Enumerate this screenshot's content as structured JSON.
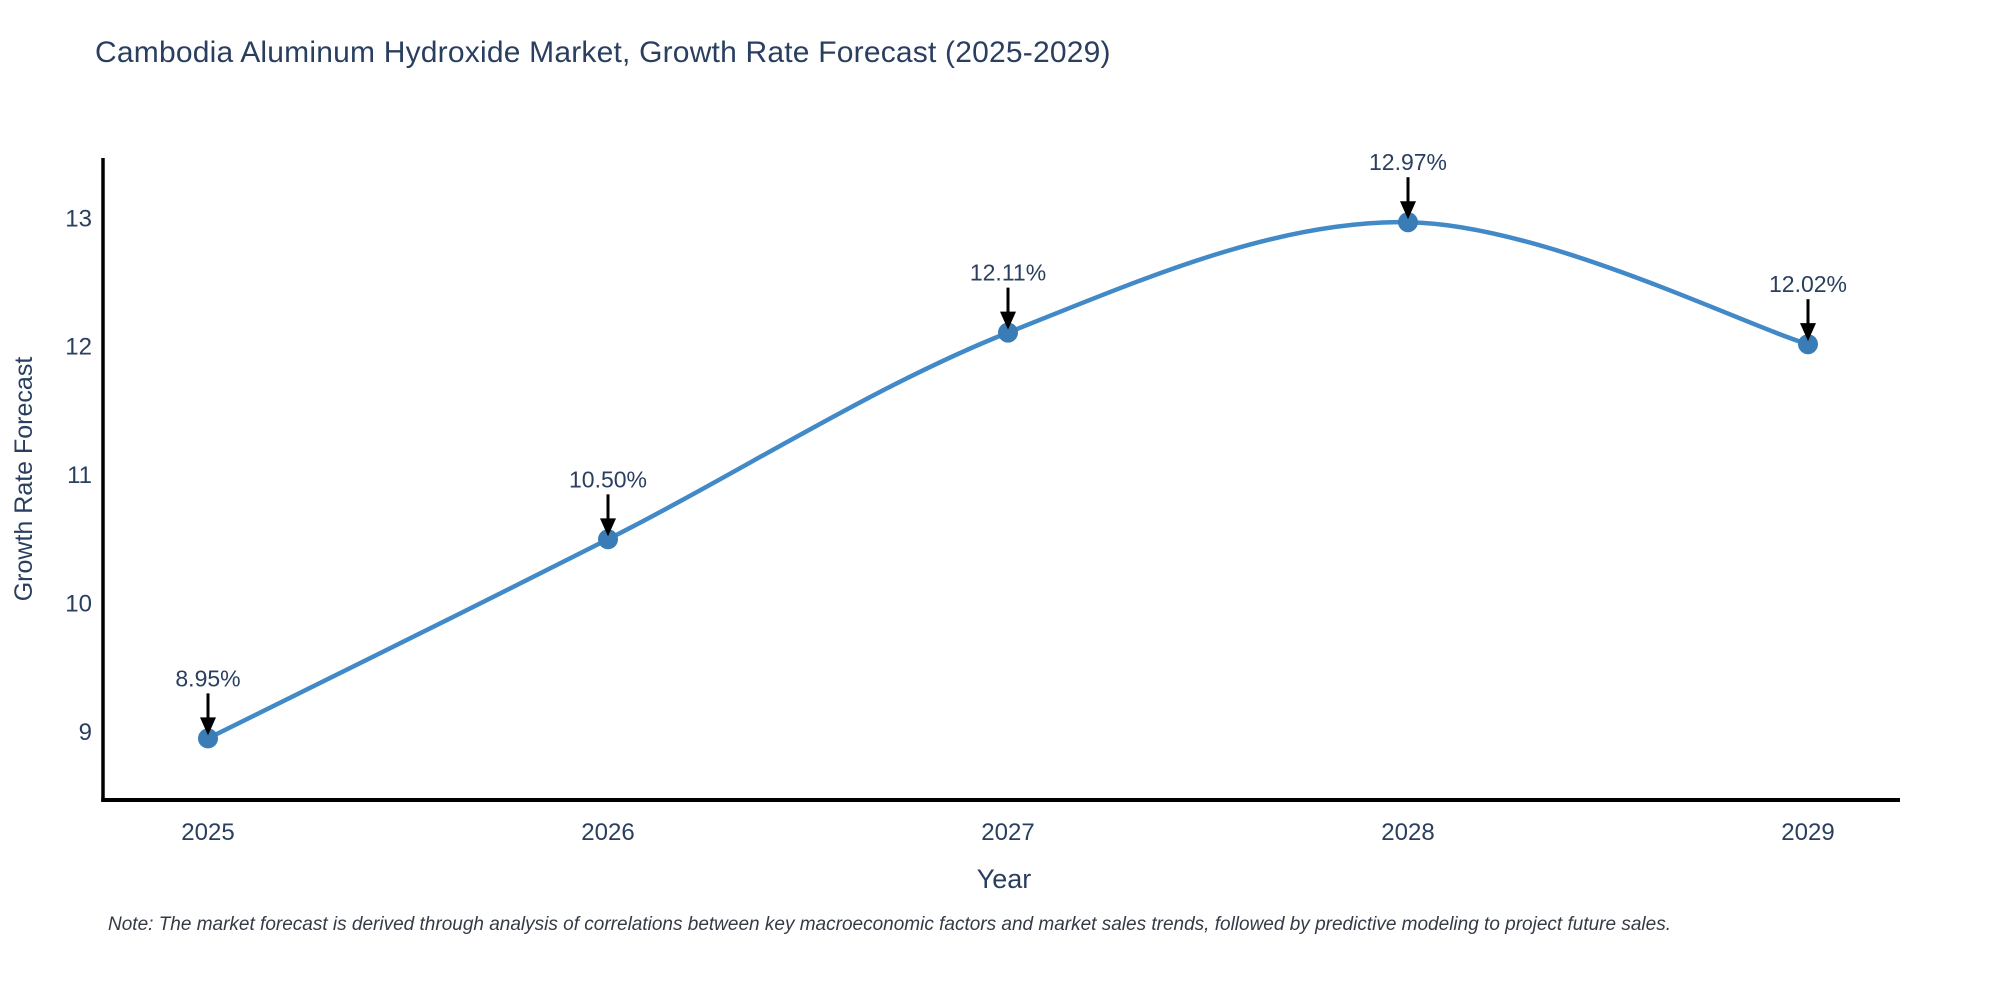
{
  "chart_data": {
    "type": "line",
    "title": "Cambodia Aluminum Hydroxide Market, Growth Rate Forecast (2025-2029)",
    "x": [
      "2025",
      "2026",
      "2027",
      "2028",
      "2029"
    ],
    "values": [
      8.95,
      10.5,
      12.11,
      12.97,
      12.02
    ],
    "point_labels": [
      "8.95%",
      "10.50%",
      "12.11%",
      "12.97%",
      "12.02%"
    ],
    "xlabel": "Year",
    "ylabel": "Growth Rate Forecast",
    "yticks": [
      9,
      10,
      11,
      12,
      13
    ],
    "ylim": [
      8.47,
      13.47
    ],
    "line_shape": "spline",
    "grid": false,
    "legend": false,
    "annotations_have_arrows": true,
    "note": "Note: The market forecast is derived through analysis of correlations between key macroeconomic factors and market sales trends, followed by predictive modeling to project future sales.",
    "colors": {
      "line": "#4189c7",
      "marker": "#3a7cb5",
      "arrow": "#000000",
      "axis_line": "#000000",
      "text": "#2a3f5f",
      "background": "#ffffff"
    }
  }
}
